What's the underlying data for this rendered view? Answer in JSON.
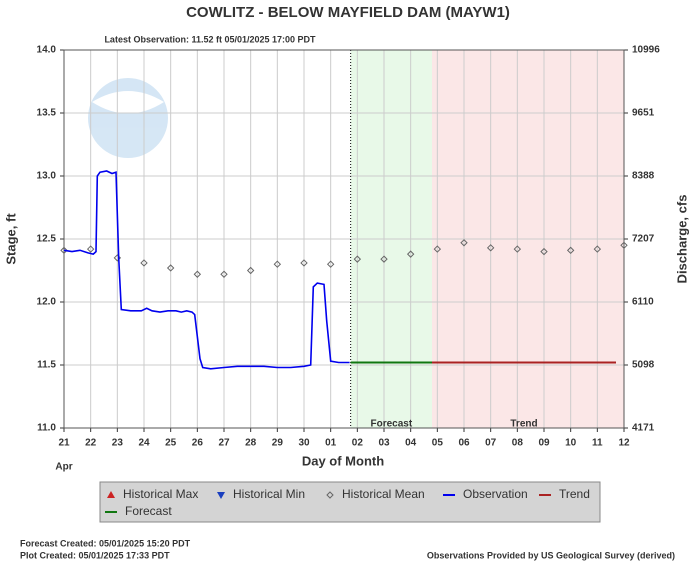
{
  "chart_data": {
    "type": "line",
    "title": "COWLITZ - BELOW MAYFIELD DAM  (MAYW1)",
    "subtitle": "Latest Observation: 11.52 ft 05/01/2025 17:00 PDT",
    "y_label": "Stage, ft",
    "y2_label": "Discharge, cfs",
    "x_label": "Day of Month",
    "month_label": "Apr",
    "annotations": [
      "Forecast",
      "Trend"
    ],
    "footer_left": [
      "Forecast Created: 05/01/2025 15:20 PDT",
      "Plot Created: 05/01/2025 17:33 PDT"
    ],
    "footer_right": "Observations Provided by US Geological Survey (derived)",
    "grid": true,
    "xlim": [
      0,
      21
    ],
    "xticks": [
      {
        "value": 0,
        "label": "21"
      },
      {
        "value": 1,
        "label": "22"
      },
      {
        "value": 2,
        "label": "23"
      },
      {
        "value": 3,
        "label": "24"
      },
      {
        "value": 4,
        "label": "25"
      },
      {
        "value": 5,
        "label": "26"
      },
      {
        "value": 6,
        "label": "27"
      },
      {
        "value": 7,
        "label": "28"
      },
      {
        "value": 8,
        "label": "29"
      },
      {
        "value": 9,
        "label": "30"
      },
      {
        "value": 10,
        "label": "01"
      },
      {
        "value": 11,
        "label": "02"
      },
      {
        "value": 12,
        "label": "03"
      },
      {
        "value": 13,
        "label": "04"
      },
      {
        "value": 14,
        "label": "05"
      },
      {
        "value": 15,
        "label": "06"
      },
      {
        "value": 16,
        "label": "07"
      },
      {
        "value": 17,
        "label": "08"
      },
      {
        "value": 18,
        "label": "09"
      },
      {
        "value": 19,
        "label": "10"
      },
      {
        "value": 20,
        "label": "11"
      },
      {
        "value": 21,
        "label": "12"
      }
    ],
    "ylim": [
      11,
      14
    ],
    "yticks": [
      {
        "value": 11,
        "label": "11.0"
      },
      11.5,
      {
        "value": 12,
        "label": "12.0"
      },
      12.5,
      {
        "value": 13,
        "label": "13.0"
      },
      13.5,
      {
        "value": 14,
        "label": "14.0"
      }
    ],
    "y2ticks": [
      4171,
      5098,
      6110,
      7207,
      8388,
      9651,
      10996
    ],
    "series": [
      {
        "name": "Historical Max",
        "color": "#cc2222",
        "marker": "triangle-up",
        "x": [],
        "values": []
      },
      {
        "name": "Historical Min",
        "color": "#1a3fbf",
        "marker": "triangle-down",
        "x": [],
        "values": []
      },
      {
        "name": "Historical Mean",
        "color": "#666666",
        "marker": "diamond",
        "x": [
          0,
          1,
          2,
          3,
          4,
          5,
          6,
          7,
          8,
          9,
          10,
          11,
          12,
          13,
          14,
          15,
          16,
          17,
          18,
          19,
          20,
          21
        ],
        "values": [
          12.41,
          12.42,
          12.35,
          12.31,
          12.27,
          12.22,
          12.22,
          12.25,
          12.3,
          12.31,
          12.3,
          12.34,
          12.34,
          12.38,
          12.42,
          12.47,
          12.43,
          12.42,
          12.4,
          12.41,
          12.42,
          12.45
        ]
      },
      {
        "name": "Observation",
        "color": "#0000ee",
        "marker": "line",
        "x": [
          0,
          0.3,
          0.6,
          0.9,
          1.1,
          1.2,
          1.25,
          1.35,
          1.6,
          1.8,
          1.95,
          2.05,
          2.15,
          2.5,
          2.9,
          3.1,
          3.3,
          3.6,
          3.9,
          4.2,
          4.4,
          4.6,
          4.8,
          4.9,
          5.1,
          5.2,
          5.5,
          6,
          6.5,
          7,
          7.5,
          8,
          8.5,
          9,
          9.25,
          9.35,
          9.5,
          9.75,
          9.85,
          10,
          10.3,
          10.71
        ],
        "values": [
          12.41,
          12.4,
          12.41,
          12.39,
          12.38,
          12.4,
          13.0,
          13.03,
          13.04,
          13.02,
          13.03,
          12.35,
          11.94,
          11.93,
          11.93,
          11.95,
          11.93,
          11.92,
          11.93,
          11.93,
          11.92,
          11.93,
          11.92,
          11.9,
          11.55,
          11.48,
          11.47,
          11.48,
          11.49,
          11.49,
          11.49,
          11.48,
          11.48,
          11.49,
          11.5,
          12.12,
          12.15,
          12.14,
          11.85,
          11.53,
          11.52,
          11.52
        ]
      },
      {
        "name": "Trend",
        "color": "#aa2222",
        "marker": "line",
        "x": [
          13.8,
          20.7
        ],
        "values": [
          11.52,
          11.52
        ]
      },
      {
        "name": "Forecast",
        "color": "#117711",
        "marker": "line",
        "x": [
          10.75,
          13.8
        ],
        "values": [
          11.52,
          11.52
        ]
      }
    ]
  }
}
